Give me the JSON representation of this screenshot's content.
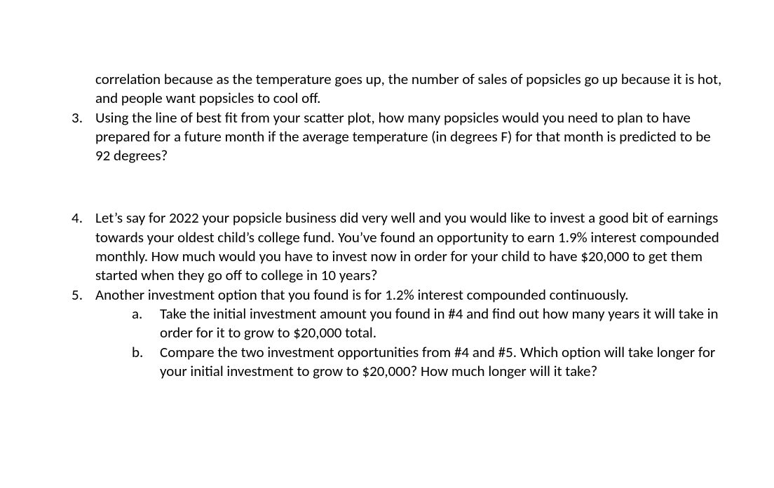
{
  "items": {
    "continuation": {
      "text": "correlation because as the temperature goes up, the number of sales of popsicles go up because it is hot, and people want popsicles to cool off."
    },
    "q3": {
      "marker": "3.",
      "text": "Using the line of best fit from your scatter plot, how many popsicles would you need to plan to have prepared for a future month if the average temperature (in degrees F) for that month is predicted to be 92 degrees?"
    },
    "q4": {
      "marker": "4.",
      "text": "Let’s say for 2022 your popsicle business did very well and you would like to invest a good bit of earnings towards your oldest child’s college fund.  You’ve found an opportunity to earn 1.9% interest compounded monthly.  How much would you have to invest now in order for your child to have $20,000 to get them started when they go off to college in 10 years?"
    },
    "q5": {
      "marker": "5.",
      "text": "Another investment option that you found is for 1.2% interest compounded continuously.",
      "sub": {
        "a": {
          "marker": "a.",
          "text": "Take the initial investment amount you found in #4 and find out how many years it will take in order for it to grow to $20,000 total."
        },
        "b": {
          "marker": "b.",
          "text": "Compare the two investment opportunities from #4 and #5.  Which option will take longer for your initial investment to grow to $20,000?  How much longer will it take?"
        }
      }
    }
  }
}
